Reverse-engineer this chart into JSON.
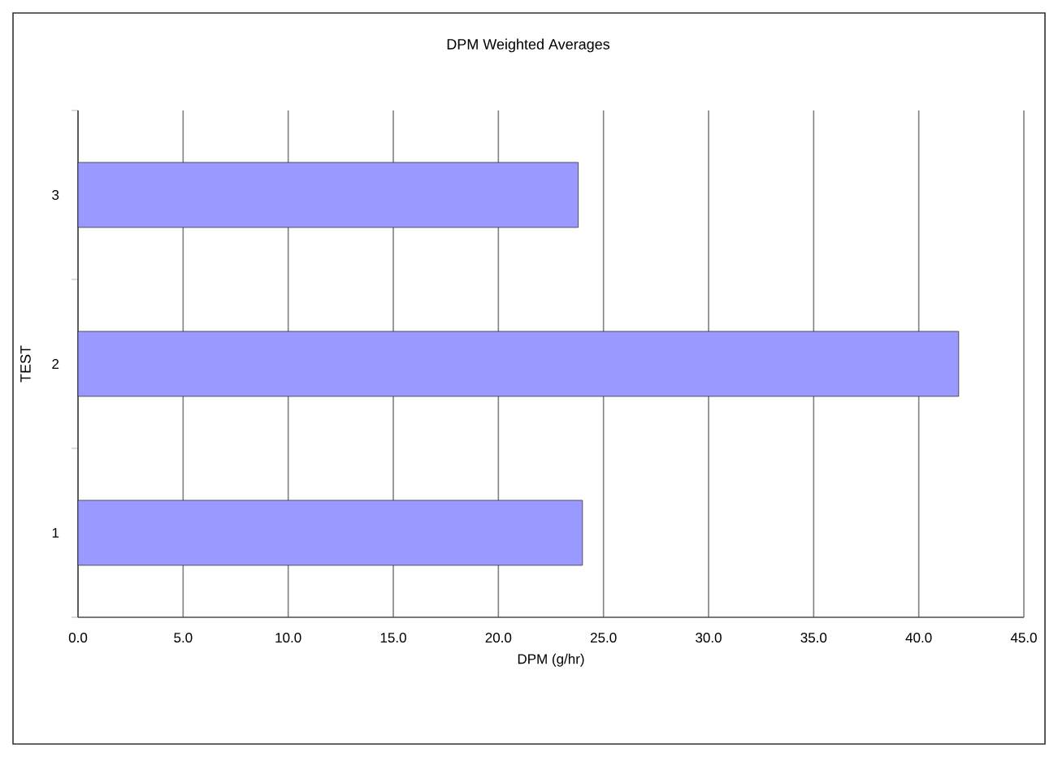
{
  "chart_data": {
    "type": "bar",
    "orientation": "horizontal",
    "title": "DPM Weighted Averages",
    "xlabel": "DPM (g/hr)",
    "ylabel": "TEST",
    "categories": [
      "3",
      "2",
      "1"
    ],
    "values": [
      23.8,
      41.9,
      24.0
    ],
    "color": "#9999ff",
    "xlim": [
      0,
      45
    ],
    "xticks": [
      {
        "value": 0,
        "label": "0.0"
      },
      {
        "value": 5,
        "label": "5.0"
      },
      {
        "value": 10,
        "label": "10.0"
      },
      {
        "value": 15,
        "label": "15.0"
      },
      {
        "value": 20,
        "label": "20.0"
      },
      {
        "value": 25,
        "label": "25.0"
      },
      {
        "value": 30,
        "label": "30.0"
      },
      {
        "value": 35,
        "label": "35.0"
      },
      {
        "value": 40,
        "label": "40.0"
      },
      {
        "value": 45,
        "label": "45.0"
      }
    ],
    "grid": "x"
  }
}
